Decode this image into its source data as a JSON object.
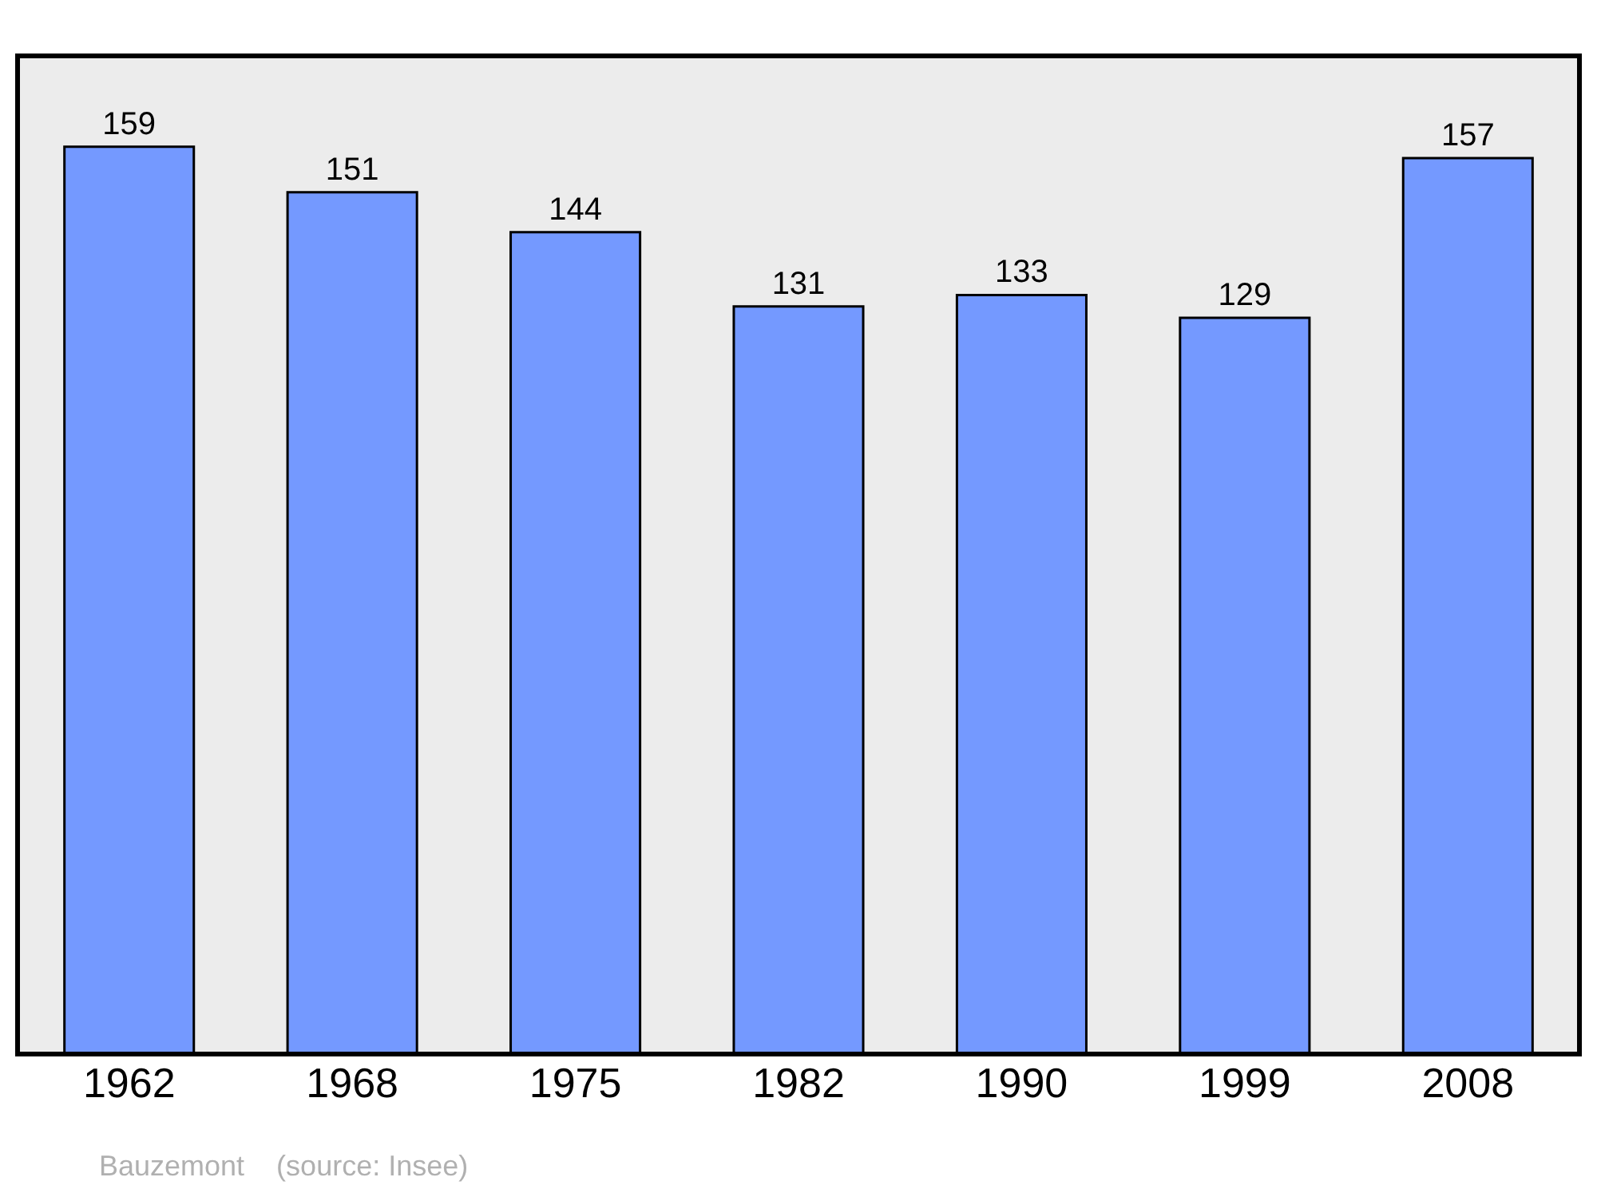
{
  "chart_data": {
    "type": "bar",
    "categories": [
      "1962",
      "1968",
      "1975",
      "1982",
      "1990",
      "1999",
      "2008"
    ],
    "values": [
      159,
      151,
      144,
      131,
      133,
      129,
      157
    ],
    "color": "#7499ff",
    "data_labels": true,
    "grid": false,
    "legend": false,
    "tick_labels": "x",
    "annotations": [
      "Bauzemont    (source: Insee)"
    ]
  }
}
